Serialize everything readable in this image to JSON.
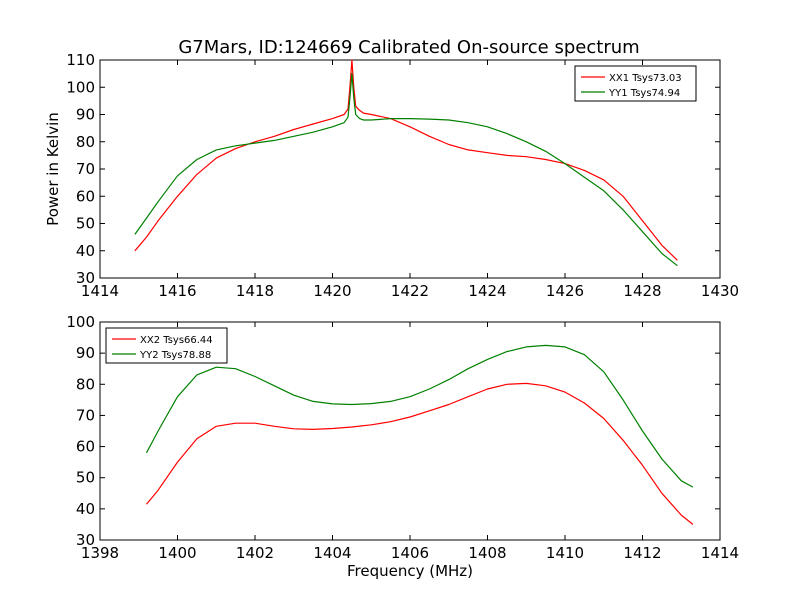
{
  "title": "G7Mars, ID:124669 Calibrated On-source spectrum",
  "colors": {
    "xx": "#ff0000",
    "yy": "#008000"
  },
  "chart_data": [
    {
      "type": "line",
      "ylabel": "Power in Kelvin",
      "xlabel": "",
      "xlim": [
        1414,
        1430
      ],
      "ylim": [
        30,
        110
      ],
      "xticks": [
        1414,
        1416,
        1418,
        1420,
        1422,
        1424,
        1426,
        1428,
        1430
      ],
      "yticks": [
        30,
        40,
        50,
        60,
        70,
        80,
        90,
        100,
        110
      ],
      "legend_position": "top-right",
      "series": [
        {
          "name": "XX1 Tsys73.03",
          "color": "#ff0000",
          "x": [
            1414.9,
            1415.2,
            1415.5,
            1416.0,
            1416.5,
            1417.0,
            1417.5,
            1418.0,
            1418.5,
            1419.0,
            1419.5,
            1420.0,
            1420.3,
            1420.4,
            1420.45,
            1420.5,
            1420.55,
            1420.6,
            1420.7,
            1420.8,
            1421.0,
            1421.5,
            1422.0,
            1422.5,
            1423.0,
            1423.5,
            1424.0,
            1424.5,
            1425.0,
            1425.5,
            1426.0,
            1426.5,
            1427.0,
            1427.5,
            1428.0,
            1428.5,
            1428.9
          ],
          "y": [
            40,
            45,
            51,
            60,
            68,
            74,
            77.5,
            80,
            82,
            84.5,
            86.5,
            88.5,
            90,
            92,
            100,
            110,
            100,
            93,
            91.5,
            90.5,
            90,
            88.5,
            85.5,
            82,
            79,
            77,
            76,
            75,
            74.5,
            73.5,
            72,
            69.5,
            66,
            60,
            51,
            42,
            36.5
          ]
        },
        {
          "name": "YY1 Tsys74.94",
          "color": "#008000",
          "x": [
            1414.9,
            1415.2,
            1415.5,
            1416.0,
            1416.5,
            1417.0,
            1417.5,
            1418.0,
            1418.5,
            1419.0,
            1419.5,
            1420.0,
            1420.3,
            1420.4,
            1420.45,
            1420.5,
            1420.55,
            1420.6,
            1420.7,
            1420.8,
            1421.0,
            1421.5,
            1422.0,
            1422.5,
            1423.0,
            1423.5,
            1424.0,
            1424.5,
            1425.0,
            1425.5,
            1426.0,
            1426.5,
            1427.0,
            1427.5,
            1428.0,
            1428.5,
            1428.9
          ],
          "y": [
            46,
            52,
            58,
            67.5,
            73.5,
            77,
            78.5,
            79.5,
            80.5,
            82,
            83.5,
            85.5,
            87,
            89,
            96,
            105,
            96,
            90,
            88.5,
            88,
            88,
            88.5,
            88.5,
            88.3,
            88,
            87,
            85.5,
            83,
            80,
            76.5,
            72,
            67,
            62,
            55,
            47,
            39,
            34.5
          ]
        }
      ]
    },
    {
      "type": "line",
      "ylabel": "",
      "xlabel": "Frequency (MHz)",
      "xlim": [
        1398,
        1414
      ],
      "ylim": [
        30,
        100
      ],
      "xticks": [
        1398,
        1400,
        1402,
        1404,
        1406,
        1408,
        1410,
        1412,
        1414
      ],
      "yticks": [
        30,
        40,
        50,
        60,
        70,
        80,
        90,
        100
      ],
      "legend_position": "top-left",
      "series": [
        {
          "name": "XX2 Tsys66.44",
          "color": "#ff0000",
          "x": [
            1399.2,
            1399.5,
            1400.0,
            1400.5,
            1401.0,
            1401.5,
            1402.0,
            1402.5,
            1403.0,
            1403.5,
            1404.0,
            1404.5,
            1405.0,
            1405.5,
            1406.0,
            1406.5,
            1407.0,
            1407.5,
            1408.0,
            1408.5,
            1409.0,
            1409.5,
            1410.0,
            1410.5,
            1411.0,
            1411.5,
            1412.0,
            1412.5,
            1413.0,
            1413.3
          ],
          "y": [
            41.5,
            46,
            55,
            62.5,
            66.5,
            67.5,
            67.5,
            66.5,
            65.7,
            65.5,
            65.8,
            66.3,
            67,
            68,
            69.5,
            71.5,
            73.5,
            76,
            78.5,
            80,
            80.3,
            79.5,
            77.5,
            74,
            69,
            62,
            54,
            45,
            38,
            35
          ]
        },
        {
          "name": "YY2 Tsys78.88",
          "color": "#008000",
          "x": [
            1399.2,
            1399.5,
            1400.0,
            1400.5,
            1401.0,
            1401.5,
            1402.0,
            1402.5,
            1403.0,
            1403.5,
            1404.0,
            1404.5,
            1405.0,
            1405.5,
            1406.0,
            1406.5,
            1407.0,
            1407.5,
            1408.0,
            1408.5,
            1409.0,
            1409.5,
            1410.0,
            1410.5,
            1411.0,
            1411.5,
            1412.0,
            1412.5,
            1413.0,
            1413.3
          ],
          "y": [
            58,
            65,
            76,
            83,
            85.5,
            85,
            82.5,
            79.5,
            76.5,
            74.5,
            73.7,
            73.5,
            73.8,
            74.5,
            76,
            78.5,
            81.5,
            85,
            88,
            90.5,
            92,
            92.5,
            92,
            89.5,
            84,
            75,
            65,
            56,
            49,
            47
          ]
        }
      ]
    }
  ]
}
